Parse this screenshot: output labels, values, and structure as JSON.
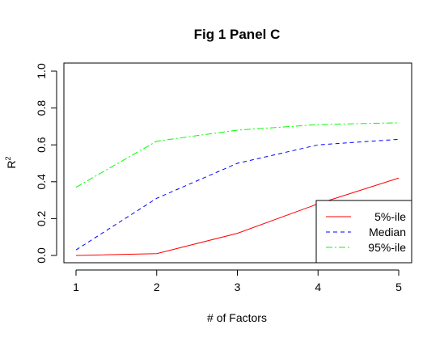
{
  "chart_data": {
    "type": "line",
    "title": "Fig 1 Panel C",
    "xlabel": "# of Factors",
    "ylabel": "R",
    "ylabel_superscript": "2",
    "x": [
      1,
      2,
      3,
      4,
      5
    ],
    "xlim": [
      1,
      5
    ],
    "ylim": [
      0,
      1
    ],
    "x_ticks": [
      "1",
      "2",
      "3",
      "4",
      "5"
    ],
    "y_ticks": [
      "0.0",
      "0.2",
      "0.4",
      "0.6",
      "0.8",
      "1.0"
    ],
    "grid": false,
    "legend_position": "bottom-right",
    "series": [
      {
        "name": "5%-ile",
        "values": [
          0.0,
          0.01,
          0.12,
          0.28,
          0.42
        ],
        "color": "#ff0000",
        "line_style": "solid"
      },
      {
        "name": "Median",
        "values": [
          0.03,
          0.31,
          0.5,
          0.6,
          0.63
        ],
        "color": "#0000ff",
        "line_style": "dashed"
      },
      {
        "name": "95%-ile",
        "values": [
          0.37,
          0.62,
          0.68,
          0.71,
          0.72
        ],
        "color": "#00ff00",
        "line_style": "dotdash"
      }
    ]
  }
}
